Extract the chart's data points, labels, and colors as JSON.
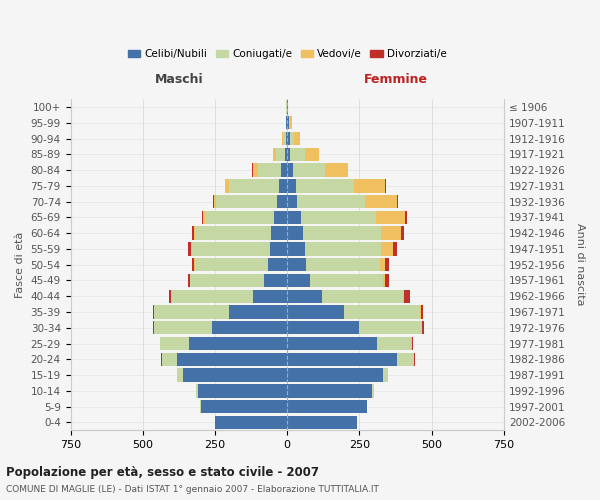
{
  "age_groups": [
    "0-4",
    "5-9",
    "10-14",
    "15-19",
    "20-24",
    "25-29",
    "30-34",
    "35-39",
    "40-44",
    "45-49",
    "50-54",
    "55-59",
    "60-64",
    "65-69",
    "70-74",
    "75-79",
    "80-84",
    "85-89",
    "90-94",
    "95-99",
    "100+"
  ],
  "birth_years": [
    "2002-2006",
    "1997-2001",
    "1992-1996",
    "1987-1991",
    "1982-1986",
    "1977-1981",
    "1972-1976",
    "1967-1971",
    "1962-1966",
    "1957-1961",
    "1952-1956",
    "1947-1951",
    "1942-1946",
    "1937-1941",
    "1932-1936",
    "1927-1931",
    "1922-1926",
    "1917-1921",
    "1912-1916",
    "1907-1911",
    "≤ 1906"
  ],
  "males": {
    "celibi": [
      250,
      300,
      310,
      360,
      380,
      340,
      260,
      200,
      120,
      80,
      65,
      60,
      55,
      45,
      35,
      30,
      20,
      8,
      5,
      3,
      2
    ],
    "coniugati": [
      1,
      2,
      5,
      20,
      55,
      100,
      200,
      260,
      280,
      255,
      255,
      270,
      265,
      240,
      210,
      170,
      80,
      30,
      10,
      3,
      1
    ],
    "vedovi": [
      0,
      0,
      0,
      0,
      0,
      0,
      0,
      0,
      1,
      1,
      1,
      2,
      3,
      5,
      10,
      15,
      20,
      10,
      3,
      0,
      0
    ],
    "divorziati": [
      0,
      0,
      0,
      0,
      1,
      2,
      3,
      5,
      8,
      8,
      10,
      10,
      8,
      5,
      3,
      2,
      2,
      1,
      0,
      0,
      0
    ]
  },
  "females": {
    "nubili": [
      240,
      275,
      295,
      330,
      380,
      310,
      250,
      195,
      120,
      80,
      65,
      60,
      55,
      48,
      35,
      30,
      20,
      10,
      8,
      5,
      2
    ],
    "coniugate": [
      1,
      2,
      5,
      20,
      60,
      120,
      215,
      265,
      280,
      250,
      255,
      265,
      270,
      260,
      235,
      200,
      110,
      50,
      15,
      5,
      1
    ],
    "vedove": [
      0,
      0,
      0,
      0,
      0,
      1,
      2,
      3,
      5,
      10,
      20,
      40,
      70,
      100,
      110,
      110,
      80,
      50,
      20,
      5,
      0
    ],
    "divorziate": [
      0,
      0,
      0,
      0,
      1,
      3,
      5,
      8,
      20,
      12,
      12,
      15,
      10,
      5,
      3,
      2,
      2,
      1,
      1,
      0,
      0
    ]
  },
  "colors": {
    "celibi": "#4472a8",
    "coniugati": "#c5d8a4",
    "vedovi": "#f0c060",
    "divorziati": "#c0302a"
  },
  "title": "Popolazione per età, sesso e stato civile - 2007",
  "subtitle": "COMUNE DI MAGLIE (LE) - Dati ISTAT 1° gennaio 2007 - Elaborazione TUTTITALIA.IT",
  "label_maschi": "Maschi",
  "label_femmine": "Femmine",
  "ylabel_left": "Fasce di età",
  "ylabel_right": "Anni di nascita",
  "xlim": 750,
  "background_color": "#f5f5f5",
  "grid_color": "#cccccc"
}
